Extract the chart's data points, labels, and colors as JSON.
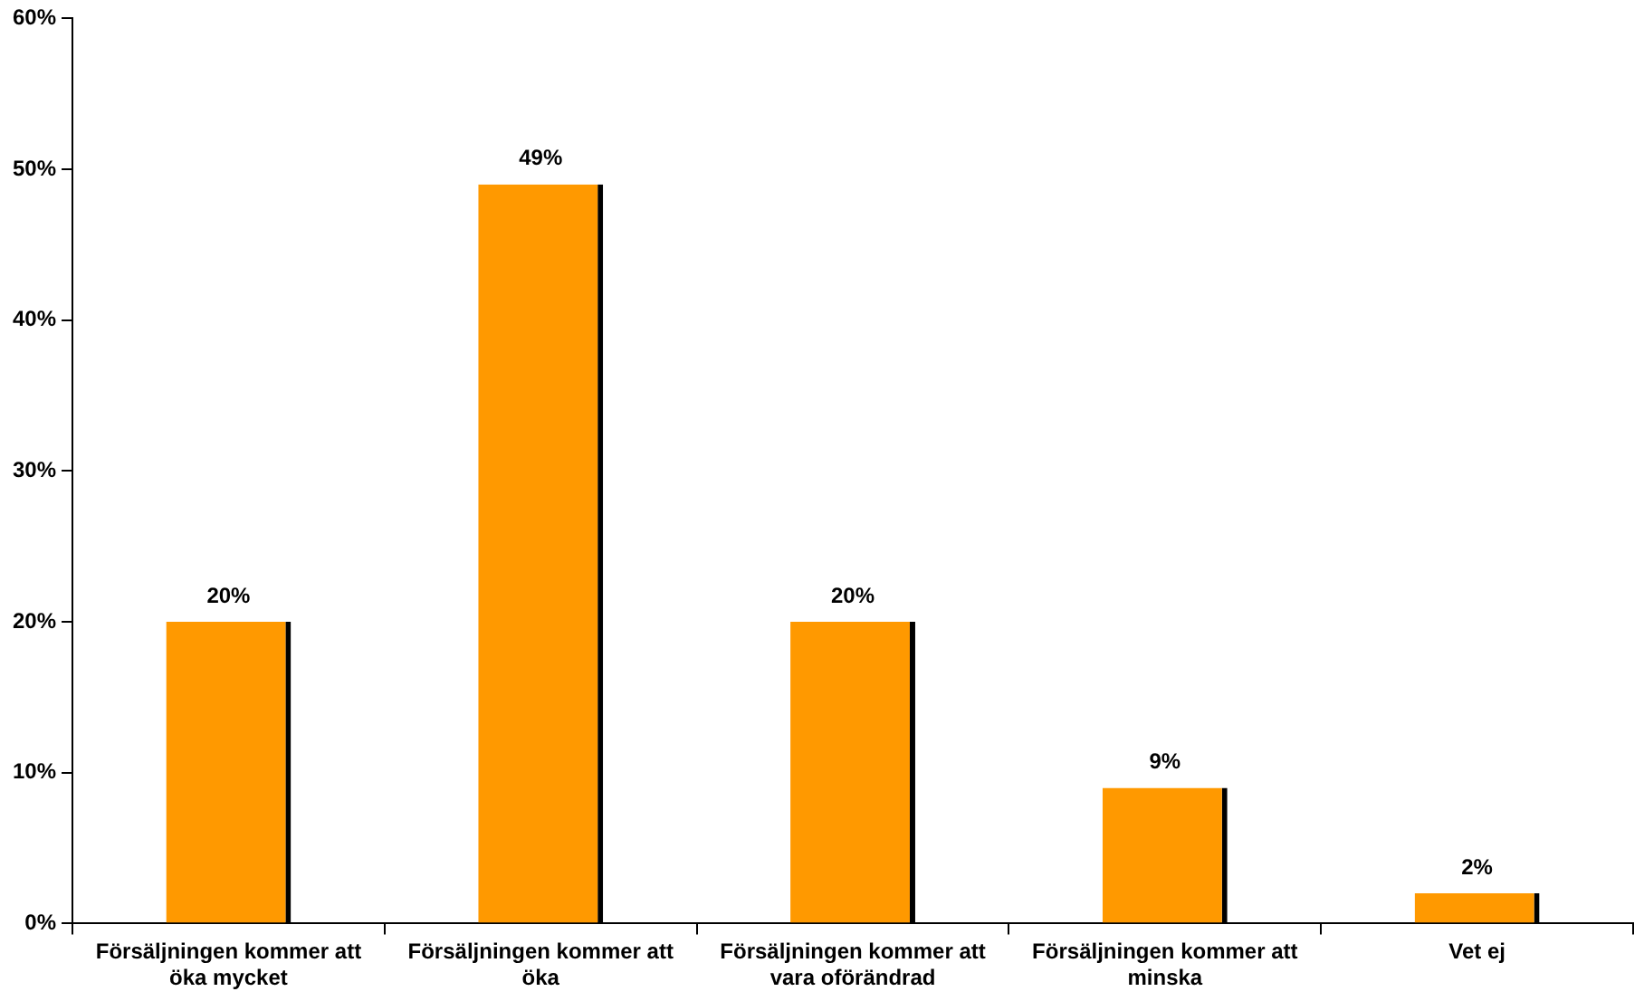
{
  "chart_data": {
    "type": "bar",
    "categories": [
      "Försäljningen kommer att öka mycket",
      "Försäljningen kommer att öka",
      "Försäljningen kommer att vara oförändrad",
      "Försäljningen kommer att minska",
      "Vet ej"
    ],
    "values": [
      20,
      49,
      20,
      9,
      2
    ],
    "color": "#ff9900",
    "value_labels": [
      "20%",
      "49%",
      "20%",
      "9%",
      "2%"
    ],
    "ylim": [
      0,
      60
    ],
    "yticks": [
      {
        "value": 0,
        "label": "0%"
      },
      {
        "value": 10,
        "label": "10%"
      },
      {
        "value": 20,
        "label": "20%"
      },
      {
        "value": 30,
        "label": "30%"
      },
      {
        "value": 40,
        "label": "40%"
      },
      {
        "value": 50,
        "label": "50%"
      },
      {
        "value": 60,
        "label": "60%"
      }
    ],
    "grid": false,
    "legend": false
  }
}
